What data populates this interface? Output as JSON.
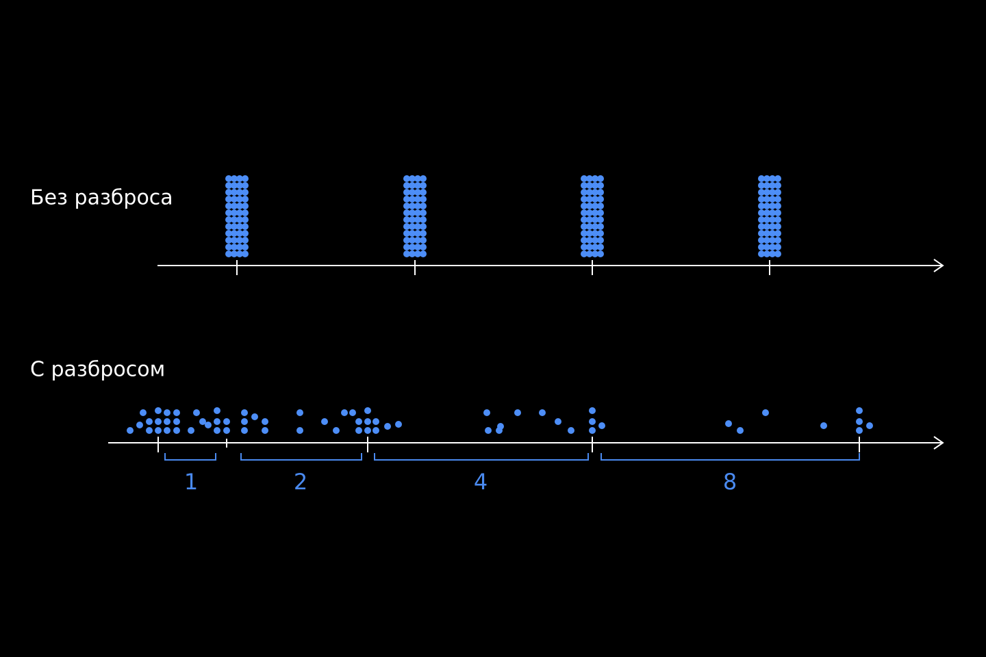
{
  "sections": [
    {
      "label": "Без разброса"
    },
    {
      "label": "С разбросом"
    }
  ],
  "intervals": [
    {
      "label": "1"
    },
    {
      "label": "2"
    },
    {
      "label": "4"
    },
    {
      "label": "8"
    }
  ]
}
